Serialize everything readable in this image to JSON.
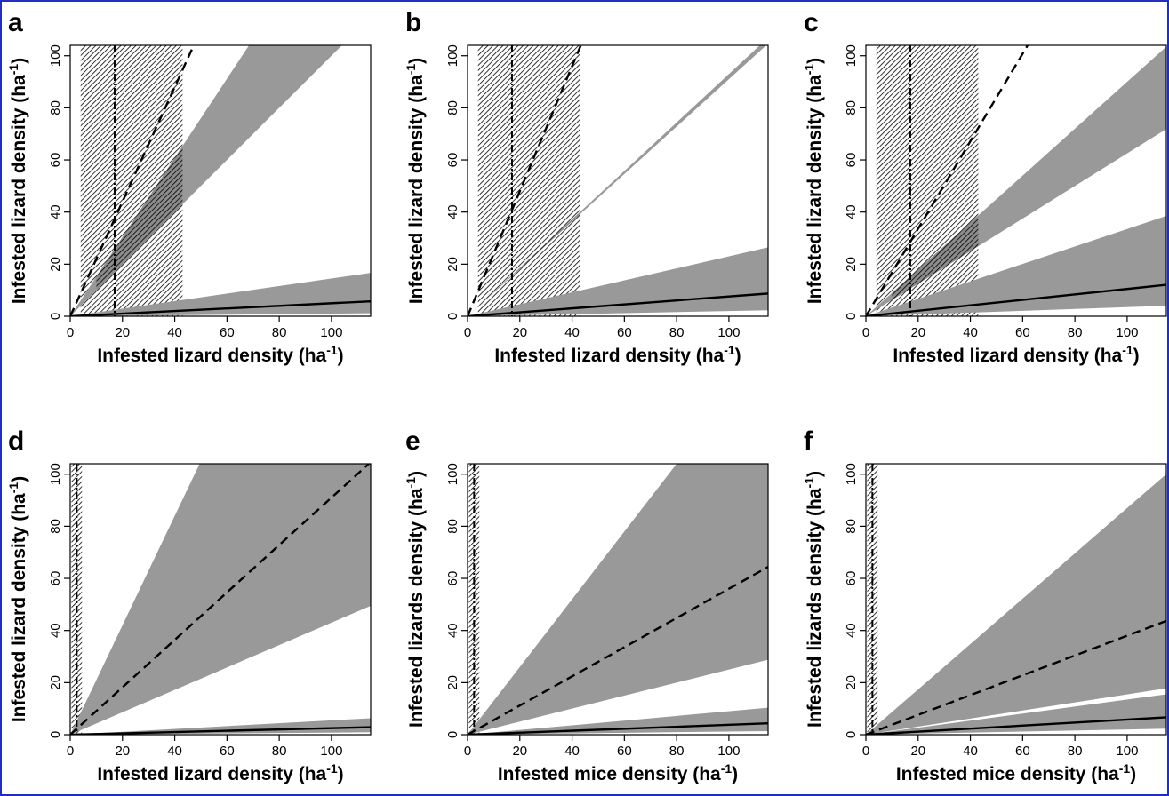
{
  "colors": {
    "band": "#999999",
    "line": "#000000",
    "frame": "#1f2fbf"
  },
  "chart_data": [
    {
      "panel": "a",
      "type": "line",
      "xlabel": "Infested lizard density (ha",
      "ylabel": "Infested lizard density (ha",
      "unit_sup": "-1",
      "unit_close": ")",
      "xlim": [
        0,
        115
      ],
      "ylim": [
        0,
        104
      ],
      "xticks": [
        "0",
        "20",
        "40",
        "60",
        "80",
        "100"
      ],
      "yticks": [
        "0",
        "20",
        "40",
        "60",
        "80",
        "100"
      ],
      "dashed_slope": 2.2,
      "dashed_band": [
        1.0,
        1.52
      ],
      "solid_slope": 0.05,
      "solid_band": [
        0.01,
        0.145
      ],
      "vline": 17,
      "hatch_range": [
        4,
        43
      ],
      "dark_hatch_range": [
        10,
        43
      ]
    },
    {
      "panel": "b",
      "type": "line",
      "xlabel": "Infested lizard density (ha",
      "ylabel": "Infested lizard density (ha",
      "unit_sup": "-1",
      "unit_close": ")",
      "xlim": [
        0,
        115
      ],
      "ylim": [
        0,
        104
      ],
      "xticks": [
        "0",
        "20",
        "40",
        "60",
        "80",
        "100"
      ],
      "yticks": [
        "0",
        "20",
        "40",
        "60",
        "80",
        "100"
      ],
      "dashed_slope": 2.4,
      "dashed_band": [
        0.91,
        0.93
      ],
      "solid_slope": 0.076,
      "solid_band": [
        0.02,
        0.23
      ],
      "vline": 17,
      "hatch_range": [
        4,
        43
      ],
      "dark_hatch_range": [
        10,
        43
      ]
    },
    {
      "panel": "c",
      "type": "line",
      "xlabel": "Infested lizard density (ha",
      "ylabel": "Infested lizard density (ha",
      "unit_sup": "-1",
      "unit_close": ")",
      "xlim": [
        0,
        115
      ],
      "ylim": [
        0,
        104
      ],
      "xticks": [
        "0",
        "20",
        "40",
        "60",
        "80",
        "100"
      ],
      "yticks": [
        "0",
        "20",
        "40",
        "60",
        "80",
        "100"
      ],
      "dashed_slope": 1.68,
      "dashed_band": [
        0.625,
        0.9
      ],
      "solid_slope": 0.105,
      "solid_band": [
        0.035,
        0.335
      ],
      "vline": 17,
      "hatch_range": [
        4,
        43
      ],
      "dark_hatch_range": [
        10,
        43
      ]
    },
    {
      "panel": "d",
      "type": "line",
      "xlabel": "Infested lizard density (ha",
      "ylabel": "Infested lizard density (ha",
      "unit_sup": "-1",
      "unit_close": ")",
      "xlim": [
        0,
        115
      ],
      "ylim": [
        0,
        104
      ],
      "xticks": [
        "0",
        "20",
        "40",
        "60",
        "80",
        "100"
      ],
      "yticks": [
        "0",
        "20",
        "40",
        "60",
        "80",
        "100"
      ],
      "dashed_slope": 0.91,
      "dashed_band": [
        0.43,
        2.1
      ],
      "solid_slope": 0.025,
      "solid_band": [
        0.008,
        0.055
      ],
      "vline": 2.5,
      "hatch_range": [
        0.5,
        4.5
      ],
      "dark_hatch_range": null
    },
    {
      "panel": "e",
      "type": "line",
      "xlabel": "Infested mice density (ha",
      "ylabel": "Infested lizards density (ha",
      "unit_sup": "-1",
      "unit_close": ")",
      "xlim": [
        0,
        115
      ],
      "ylim": [
        0,
        104
      ],
      "xticks": [
        "0",
        "20",
        "40",
        "60",
        "80",
        "100"
      ],
      "yticks": [
        "0",
        "20",
        "40",
        "60",
        "80",
        "100"
      ],
      "dashed_slope": 0.56,
      "dashed_band": [
        0.25,
        1.3
      ],
      "solid_slope": 0.038,
      "solid_band": [
        0.012,
        0.09
      ],
      "vline": 2.5,
      "hatch_range": [
        0.5,
        4.5
      ],
      "dark_hatch_range": null
    },
    {
      "panel": "f",
      "type": "line",
      "xlabel": "Infested mice density (ha",
      "ylabel": "Infested lizards density (ha",
      "unit_sup": "-1",
      "unit_close": ")",
      "xlim": [
        0,
        115
      ],
      "ylim": [
        0,
        104
      ],
      "xticks": [
        "0",
        "20",
        "40",
        "60",
        "80",
        "100"
      ],
      "yticks": [
        "0",
        "20",
        "40",
        "60",
        "80",
        "100"
      ],
      "dashed_slope": 0.38,
      "dashed_band": [
        0.155,
        0.87
      ],
      "solid_slope": 0.058,
      "solid_band": [
        0.02,
        0.135
      ],
      "vline": 2.5,
      "hatch_range": [
        0.5,
        4.5
      ],
      "dark_hatch_range": null
    }
  ]
}
